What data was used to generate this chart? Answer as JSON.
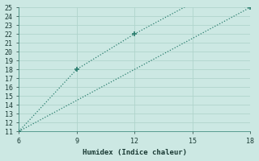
{
  "line1_x": [
    6,
    9,
    12,
    15,
    18
  ],
  "line1_y": [
    11,
    18,
    22,
    25.5,
    25
  ],
  "line2_x": [
    6,
    18
  ],
  "line2_y": [
    11,
    25
  ],
  "line_color": "#2a7d6e",
  "bg_color": "#cce8e3",
  "grid_color": "#b0d4cc",
  "xlabel": "Humidex (Indice chaleur)",
  "xlim": [
    6,
    18
  ],
  "ylim": [
    11,
    25
  ],
  "xticks": [
    6,
    9,
    12,
    15,
    18
  ],
  "yticks": [
    11,
    12,
    13,
    14,
    15,
    16,
    17,
    18,
    19,
    20,
    21,
    22,
    23,
    24,
    25
  ],
  "markersize": 3
}
